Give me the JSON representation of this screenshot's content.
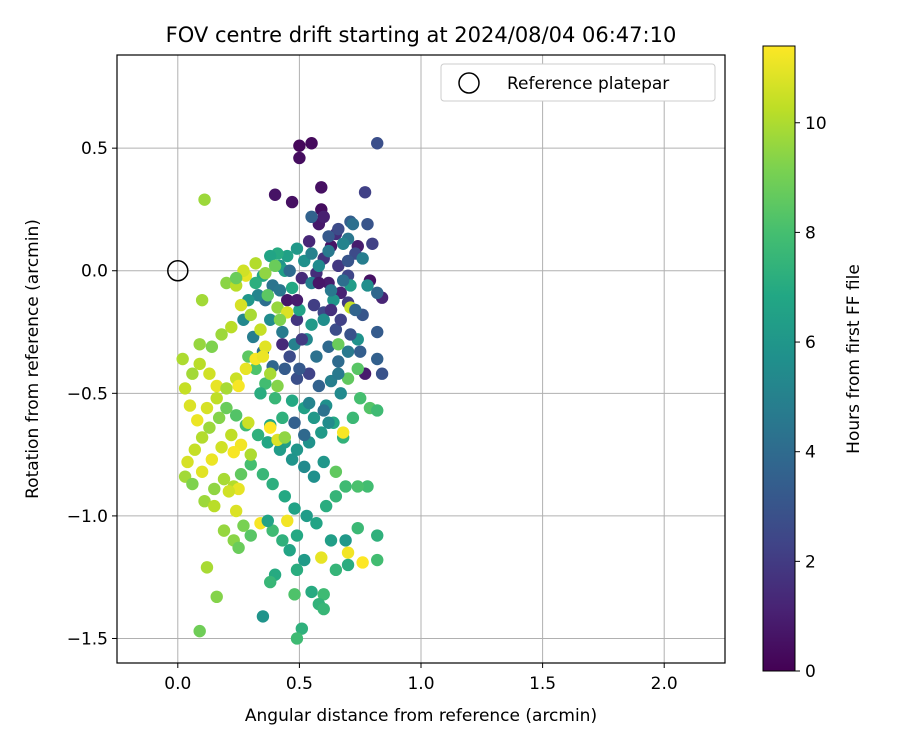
{
  "chart_data": {
    "type": "scatter",
    "title": "FOV centre drift starting at 2024/08/04 06:47:10",
    "xlabel": "Angular distance from reference (arcmin)",
    "ylabel": "Rotation from reference (arcmin)",
    "xlim": [
      -0.25,
      2.25
    ],
    "ylim": [
      -1.6,
      0.88
    ],
    "xticks": [
      0.0,
      0.5,
      1.0,
      1.5,
      2.0
    ],
    "xtick_labels": [
      "0.0",
      "0.5",
      "1.0",
      "1.5",
      "2.0"
    ],
    "yticks": [
      0.5,
      0.0,
      -0.5,
      -1.0,
      -1.5
    ],
    "ytick_labels": [
      "0.5",
      "0.0",
      "−0.5",
      "−1.0",
      "−1.5"
    ],
    "grid": true,
    "legend": {
      "placement": "top-right",
      "entries": [
        "Reference platepar"
      ]
    },
    "reference_point": {
      "x": 0.0,
      "y": 0.0,
      "label": "Reference platepar"
    },
    "colorbar": {
      "label": "Hours from first FF file",
      "range": [
        0,
        11.4
      ],
      "ticks": [
        0,
        2,
        4,
        6,
        8,
        10
      ],
      "tick_labels": [
        "0",
        "2",
        "4",
        "6",
        "8",
        "10"
      ],
      "colormap": "viridis"
    },
    "color_encoding": "hours",
    "points": [
      [
        0.5,
        0.51,
        0.2
      ],
      [
        0.55,
        0.52,
        0.3
      ],
      [
        0.5,
        0.46,
        0.4
      ],
      [
        0.59,
        0.34,
        0.5
      ],
      [
        0.4,
        0.31,
        0.6
      ],
      [
        0.47,
        0.28,
        0.5
      ],
      [
        0.59,
        0.25,
        0.4
      ],
      [
        0.58,
        0.19,
        0.8
      ],
      [
        0.82,
        0.52,
        2.8
      ],
      [
        0.77,
        0.32,
        2.2
      ],
      [
        0.6,
        0.22,
        1.0
      ],
      [
        0.63,
        0.1,
        0.6
      ],
      [
        0.74,
        0.1,
        0.9
      ],
      [
        0.79,
        -0.04,
        0.5
      ],
      [
        0.84,
        -0.11,
        1.2
      ],
      [
        0.65,
        0.15,
        1.5
      ],
      [
        0.71,
        0.2,
        3.4
      ],
      [
        0.55,
        0.22,
        3.6
      ],
      [
        0.78,
        0.19,
        3.0
      ],
      [
        0.8,
        0.11,
        2.2
      ],
      [
        0.6,
        0.05,
        1.7
      ],
      [
        0.54,
        0.12,
        1.3
      ],
      [
        0.7,
        -0.02,
        2.4
      ],
      [
        0.73,
        0.07,
        2.6
      ],
      [
        0.66,
        0.02,
        1.9
      ],
      [
        0.57,
        -0.01,
        1.5
      ],
      [
        0.62,
        -0.05,
        0.9
      ],
      [
        0.67,
        -0.09,
        1.1
      ],
      [
        0.51,
        -0.03,
        1.4
      ],
      [
        0.45,
        -0.12,
        0.7
      ],
      [
        0.49,
        -0.2,
        1.8
      ],
      [
        0.56,
        -0.14,
        2.1
      ],
      [
        0.6,
        -0.17,
        2.5
      ],
      [
        0.65,
        -0.24,
        2.7
      ],
      [
        0.7,
        -0.13,
        2.0
      ],
      [
        0.76,
        -0.18,
        3.1
      ],
      [
        0.82,
        -0.25,
        3.3
      ],
      [
        0.82,
        -0.36,
        3.5
      ],
      [
        0.84,
        -0.42,
        2.9
      ],
      [
        0.77,
        -0.42,
        0.9
      ],
      [
        0.82,
        -0.09,
        3.8
      ],
      [
        0.72,
        0.19,
        4.2
      ],
      [
        0.7,
        0.13,
        4.5
      ],
      [
        0.76,
        0.05,
        4.8
      ],
      [
        0.68,
        0.11,
        5.1
      ],
      [
        0.62,
        0.08,
        4.6
      ],
      [
        0.58,
        0.02,
        5.4
      ],
      [
        0.55,
        -0.05,
        4.9
      ],
      [
        0.52,
        0.04,
        5.7
      ],
      [
        0.49,
        0.09,
        6.1
      ],
      [
        0.45,
        0.06,
        6.5
      ],
      [
        0.42,
        0.02,
        5.9
      ],
      [
        0.39,
        -0.06,
        4.4
      ],
      [
        0.36,
        -0.12,
        4.1
      ],
      [
        0.33,
        -0.1,
        5.2
      ],
      [
        0.38,
        -0.2,
        5.5
      ],
      [
        0.43,
        -0.25,
        4.7
      ],
      [
        0.48,
        -0.3,
        5.0
      ],
      [
        0.53,
        -0.28,
        5.3
      ],
      [
        0.57,
        -0.35,
        4.3
      ],
      [
        0.62,
        -0.31,
        3.9
      ],
      [
        0.66,
        -0.37,
        4.0
      ],
      [
        0.7,
        -0.33,
        4.6
      ],
      [
        0.74,
        -0.28,
        5.8
      ],
      [
        0.78,
        -0.06,
        5.6
      ],
      [
        0.71,
        -0.06,
        6.3
      ],
      [
        0.64,
        -0.12,
        6.0
      ],
      [
        0.6,
        -0.2,
        5.6
      ],
      [
        0.55,
        -0.22,
        6.2
      ],
      [
        0.5,
        -0.16,
        6.6
      ],
      [
        0.47,
        -0.07,
        6.9
      ],
      [
        0.44,
        0.0,
        6.4
      ],
      [
        0.41,
        0.07,
        7.0
      ],
      [
        0.38,
        0.06,
        6.7
      ],
      [
        0.35,
        -0.02,
        6.8
      ],
      [
        0.32,
        -0.05,
        7.2
      ],
      [
        0.29,
        -0.12,
        6.0
      ],
      [
        0.27,
        -0.2,
        5.3
      ],
      [
        0.31,
        -0.27,
        4.8
      ],
      [
        0.35,
        -0.33,
        4.2
      ],
      [
        0.39,
        -0.39,
        3.8
      ],
      [
        0.44,
        -0.4,
        3.3
      ],
      [
        0.49,
        -0.44,
        2.8
      ],
      [
        0.54,
        -0.42,
        2.3
      ],
      [
        0.58,
        -0.47,
        3.6
      ],
      [
        0.63,
        -0.45,
        4.9
      ],
      [
        0.67,
        -0.5,
        5.4
      ],
      [
        0.61,
        -0.55,
        5.7
      ],
      [
        0.56,
        -0.6,
        6.1
      ],
      [
        0.52,
        -0.56,
        6.5
      ],
      [
        0.47,
        -0.53,
        6.9
      ],
      [
        0.43,
        -0.6,
        7.3
      ],
      [
        0.4,
        -0.52,
        7.6
      ],
      [
        0.36,
        -0.46,
        7.9
      ],
      [
        0.32,
        -0.4,
        8.2
      ],
      [
        0.29,
        -0.35,
        8.5
      ],
      [
        0.34,
        -0.5,
        7.1
      ],
      [
        0.38,
        -0.63,
        6.8
      ],
      [
        0.44,
        -0.7,
        6.4
      ],
      [
        0.49,
        -0.73,
        6.0
      ],
      [
        0.54,
        -0.7,
        5.8
      ],
      [
        0.59,
        -0.66,
        6.2
      ],
      [
        0.64,
        -0.62,
        6.9
      ],
      [
        0.68,
        -0.68,
        7.4
      ],
      [
        0.72,
        -0.6,
        7.7
      ],
      [
        0.75,
        -0.52,
        8.0
      ],
      [
        0.79,
        -0.56,
        8.3
      ],
      [
        0.82,
        -0.57,
        7.8
      ],
      [
        0.7,
        -0.44,
        8.6
      ],
      [
        0.74,
        -0.4,
        8.4
      ],
      [
        0.66,
        -0.3,
        8.8
      ],
      [
        0.71,
        -0.15,
        10.4
      ],
      [
        0.68,
        -0.66,
        11.3
      ],
      [
        0.78,
        -0.88,
        7.9
      ],
      [
        0.82,
        -1.08,
        7.3
      ],
      [
        0.82,
        -1.18,
        7.9
      ],
      [
        0.76,
        -1.19,
        11.4
      ],
      [
        0.7,
        -1.15,
        11.2
      ],
      [
        0.7,
        -1.2,
        7.1
      ],
      [
        0.65,
        -1.22,
        7.5
      ],
      [
        0.6,
        -1.32,
        7.8
      ],
      [
        0.58,
        -1.36,
        7.4
      ],
      [
        0.55,
        -1.31,
        7.0
      ],
      [
        0.6,
        -1.38,
        7.6
      ],
      [
        0.51,
        -1.46,
        7.3
      ],
      [
        0.49,
        -1.5,
        7.8
      ],
      [
        0.48,
        -1.32,
        8.2
      ],
      [
        0.4,
        -1.24,
        7.0
      ],
      [
        0.38,
        -1.27,
        7.6
      ],
      [
        0.35,
        -1.41,
        5.9
      ],
      [
        0.59,
        -1.17,
        11.0
      ],
      [
        0.52,
        -1.18,
        6.2
      ],
      [
        0.49,
        -1.22,
        7.1
      ],
      [
        0.46,
        -1.14,
        6.7
      ],
      [
        0.43,
        -1.1,
        7.3
      ],
      [
        0.39,
        -1.06,
        7.8
      ],
      [
        0.34,
        -1.03,
        11.3
      ],
      [
        0.3,
        -1.08,
        8.4
      ],
      [
        0.27,
        -1.04,
        9.1
      ],
      [
        0.23,
        -1.1,
        9.4
      ],
      [
        0.25,
        -1.13,
        8.8
      ],
      [
        0.19,
        -1.06,
        9.6
      ],
      [
        0.12,
        -1.21,
        9.9
      ],
      [
        0.16,
        -1.33,
        9.3
      ],
      [
        0.09,
        -1.47,
        8.9
      ],
      [
        0.11,
        -0.94,
        9.7
      ],
      [
        0.15,
        -0.89,
        9.5
      ],
      [
        0.19,
        -0.85,
        9.9
      ],
      [
        0.23,
        -0.88,
        10.1
      ],
      [
        0.26,
        -0.83,
        8.6
      ],
      [
        0.3,
        -0.79,
        8.0
      ],
      [
        0.35,
        -0.83,
        7.6
      ],
      [
        0.39,
        -0.87,
        7.2
      ],
      [
        0.44,
        -0.92,
        6.9
      ],
      [
        0.48,
        -0.97,
        6.6
      ],
      [
        0.53,
        -1.0,
        6.3
      ],
      [
        0.57,
        -1.03,
        6.7
      ],
      [
        0.61,
        -0.96,
        7.1
      ],
      [
        0.65,
        -0.92,
        7.5
      ],
      [
        0.69,
        -0.88,
        7.8
      ],
      [
        0.74,
        -0.88,
        8.1
      ],
      [
        0.65,
        -0.82,
        8.6
      ],
      [
        0.6,
        -0.78,
        6.0
      ],
      [
        0.56,
        -0.84,
        5.7
      ],
      [
        0.52,
        -0.8,
        5.4
      ],
      [
        0.47,
        -0.77,
        5.9
      ],
      [
        0.42,
        -0.73,
        6.3
      ],
      [
        0.37,
        -0.7,
        6.8
      ],
      [
        0.33,
        -0.67,
        7.3
      ],
      [
        0.28,
        -0.63,
        7.8
      ],
      [
        0.24,
        -0.59,
        8.3
      ],
      [
        0.2,
        -0.56,
        8.8
      ],
      [
        0.17,
        -0.6,
        9.3
      ],
      [
        0.13,
        -0.64,
        9.7
      ],
      [
        0.1,
        -0.68,
        10.1
      ],
      [
        0.07,
        -0.73,
        10.4
      ],
      [
        0.04,
        -0.78,
        10.7
      ],
      [
        0.03,
        -0.84,
        9.8
      ],
      [
        0.06,
        -0.87,
        9.2
      ],
      [
        0.1,
        -0.82,
        10.9
      ],
      [
        0.14,
        -0.77,
        11.1
      ],
      [
        0.18,
        -0.72,
        10.6
      ],
      [
        0.22,
        -0.67,
        10.3
      ],
      [
        0.26,
        -0.71,
        11.2
      ],
      [
        0.3,
        -0.75,
        10.0
      ],
      [
        0.16,
        -0.47,
        11.0
      ],
      [
        0.13,
        -0.42,
        10.6
      ],
      [
        0.09,
        -0.38,
        10.2
      ],
      [
        0.06,
        -0.42,
        9.8
      ],
      [
        0.03,
        -0.48,
        10.4
      ],
      [
        0.05,
        -0.55,
        10.8
      ],
      [
        0.08,
        -0.61,
        11.1
      ],
      [
        0.12,
        -0.56,
        10.7
      ],
      [
        0.16,
        -0.52,
        10.3
      ],
      [
        0.2,
        -0.48,
        9.9
      ],
      [
        0.24,
        -0.44,
        10.5
      ],
      [
        0.28,
        -0.4,
        11.0
      ],
      [
        0.32,
        -0.36,
        11.3
      ],
      [
        0.36,
        -0.31,
        10.9
      ],
      [
        0.34,
        -0.24,
        10.4
      ],
      [
        0.3,
        -0.18,
        9.9
      ],
      [
        0.26,
        -0.14,
        10.7
      ],
      [
        0.22,
        -0.23,
        10.2
      ],
      [
        0.18,
        -0.26,
        9.7
      ],
      [
        0.14,
        -0.31,
        9.2
      ],
      [
        0.09,
        -0.3,
        9.6
      ],
      [
        0.02,
        -0.36,
        10.0
      ],
      [
        0.1,
        -0.12,
        9.8
      ],
      [
        0.11,
        0.29,
        9.7
      ],
      [
        0.2,
        -0.05,
        9.4
      ],
      [
        0.24,
        -0.06,
        10.2
      ],
      [
        0.28,
        -0.02,
        11.0
      ],
      [
        0.27,
        0.0,
        10.6
      ],
      [
        0.24,
        -0.03,
        8.8
      ],
      [
        0.32,
        0.03,
        10.1
      ],
      [
        0.36,
        -0.01,
        9.5
      ],
      [
        0.4,
        0.02,
        8.8
      ],
      [
        0.37,
        -0.1,
        8.5
      ],
      [
        0.41,
        -0.15,
        9.6
      ],
      [
        0.45,
        -0.17,
        10.8
      ],
      [
        0.42,
        -0.2,
        9.2
      ],
      [
        0.35,
        -0.35,
        11.1
      ],
      [
        0.38,
        -0.42,
        9.9
      ],
      [
        0.41,
        -0.47,
        9.3
      ],
      [
        0.25,
        -0.47,
        11.3
      ],
      [
        0.38,
        -0.64,
        11.4
      ],
      [
        0.41,
        -0.69,
        10.8
      ],
      [
        0.29,
        -0.62,
        10.5
      ],
      [
        0.23,
        -0.74,
        11.3
      ],
      [
        0.25,
        -0.89,
        11.0
      ],
      [
        0.21,
        -0.9,
        10.6
      ],
      [
        0.15,
        -0.96,
        10.2
      ],
      [
        0.24,
        -0.98,
        10.8
      ],
      [
        0.45,
        -1.02,
        11.2
      ],
      [
        0.44,
        -0.68,
        9.5
      ],
      [
        0.63,
        -1.1,
        6.4
      ],
      [
        0.69,
        -1.1,
        6.1
      ],
      [
        0.74,
        -1.05,
        7.7
      ],
      [
        0.49,
        -1.08,
        6.9
      ],
      [
        0.37,
        -1.02,
        6.6
      ],
      [
        0.62,
        -0.62,
        5.5
      ],
      [
        0.54,
        -0.54,
        5.1
      ],
      [
        0.66,
        -0.42,
        4.6
      ],
      [
        0.6,
        -0.57,
        4.3
      ],
      [
        0.52,
        -0.67,
        3.9
      ],
      [
        0.48,
        -0.62,
        3.5
      ],
      [
        0.5,
        -0.4,
        3.2
      ],
      [
        0.46,
        -0.35,
        2.6
      ],
      [
        0.51,
        -0.28,
        2.0
      ],
      [
        0.43,
        -0.3,
        1.4
      ],
      [
        0.49,
        -0.12,
        0.9
      ],
      [
        0.58,
        -0.05,
        0.7
      ],
      [
        0.63,
        -0.16,
        1.6
      ],
      [
        0.67,
        -0.2,
        2.2
      ],
      [
        0.71,
        -0.26,
        2.9
      ],
      [
        0.75,
        -0.33,
        3.4
      ],
      [
        0.73,
        -0.16,
        3.7
      ],
      [
        0.46,
        0.0,
        4.0
      ],
      [
        0.42,
        -0.08,
        4.5
      ],
      [
        0.55,
        0.07,
        5.0
      ],
      [
        0.62,
        0.14,
        3.2
      ],
      [
        0.66,
        0.17,
        2.6
      ],
      [
        0.7,
        0.04,
        3.0
      ],
      [
        0.68,
        -0.04,
        4.1
      ],
      [
        0.63,
        -0.08,
        4.6
      ]
    ]
  }
}
